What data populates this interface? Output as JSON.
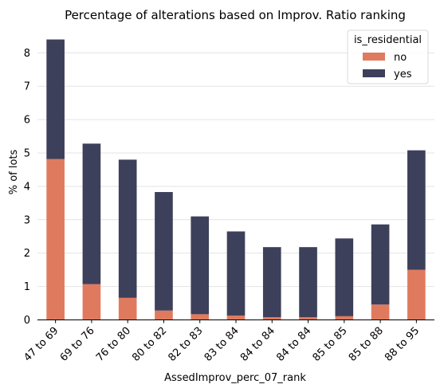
{
  "chart_data": {
    "type": "bar",
    "stacked": true,
    "title": "Percentage of alterations based on Improv. Ratio ranking",
    "xlabel": "AssedImprov_perc_07_rank",
    "ylabel": "% of lots",
    "categories": [
      "47 to 69",
      "69 to 76",
      "76 to 80",
      "80 to 82",
      "82 to 83",
      "83 to 84",
      "84 to 84",
      "84 to 84",
      "85 to 85",
      "85 to 88",
      "88 to 95"
    ],
    "series": [
      {
        "name": "no",
        "color": "#e07a5f",
        "values": [
          4.82,
          1.07,
          0.66,
          0.28,
          0.17,
          0.13,
          0.08,
          0.08,
          0.11,
          0.46,
          1.5
        ]
      },
      {
        "name": "yes",
        "color": "#3d405b",
        "values": [
          3.58,
          4.21,
          4.14,
          3.55,
          2.93,
          2.52,
          2.1,
          2.1,
          2.33,
          2.4,
          3.58
        ]
      }
    ],
    "ylim": [
      0,
      8.7
    ],
    "yticks": [
      0,
      1,
      2,
      3,
      4,
      5,
      6,
      7,
      8
    ],
    "grid": "y",
    "legend": {
      "title": "is_residential",
      "position": "top-right"
    }
  }
}
